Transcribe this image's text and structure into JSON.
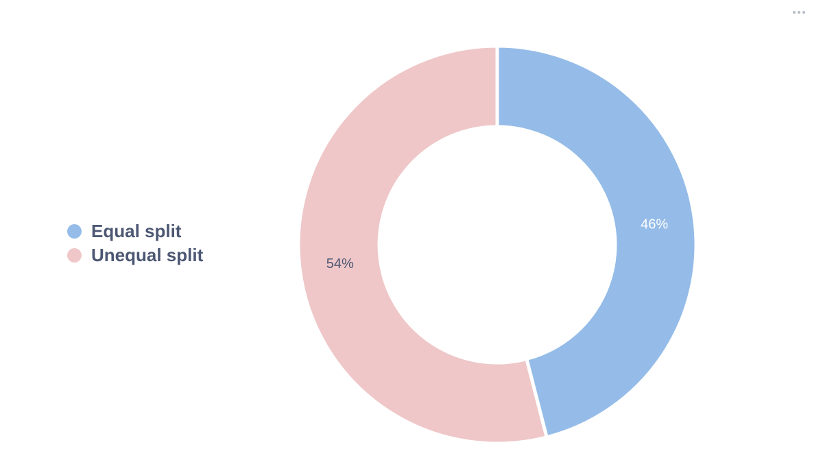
{
  "chart_data": {
    "type": "pie",
    "variant": "donut",
    "categories": [
      "Equal split",
      "Unequal split"
    ],
    "values": [
      46,
      54
    ],
    "labels": [
      "46%",
      "54%"
    ],
    "colors": [
      "#95bce8",
      "#efc7c8"
    ],
    "label_colors": [
      "#ffffff",
      "#4c5773"
    ],
    "legend_position": "left"
  },
  "menu": {
    "icon": "more-horizontal-icon"
  }
}
